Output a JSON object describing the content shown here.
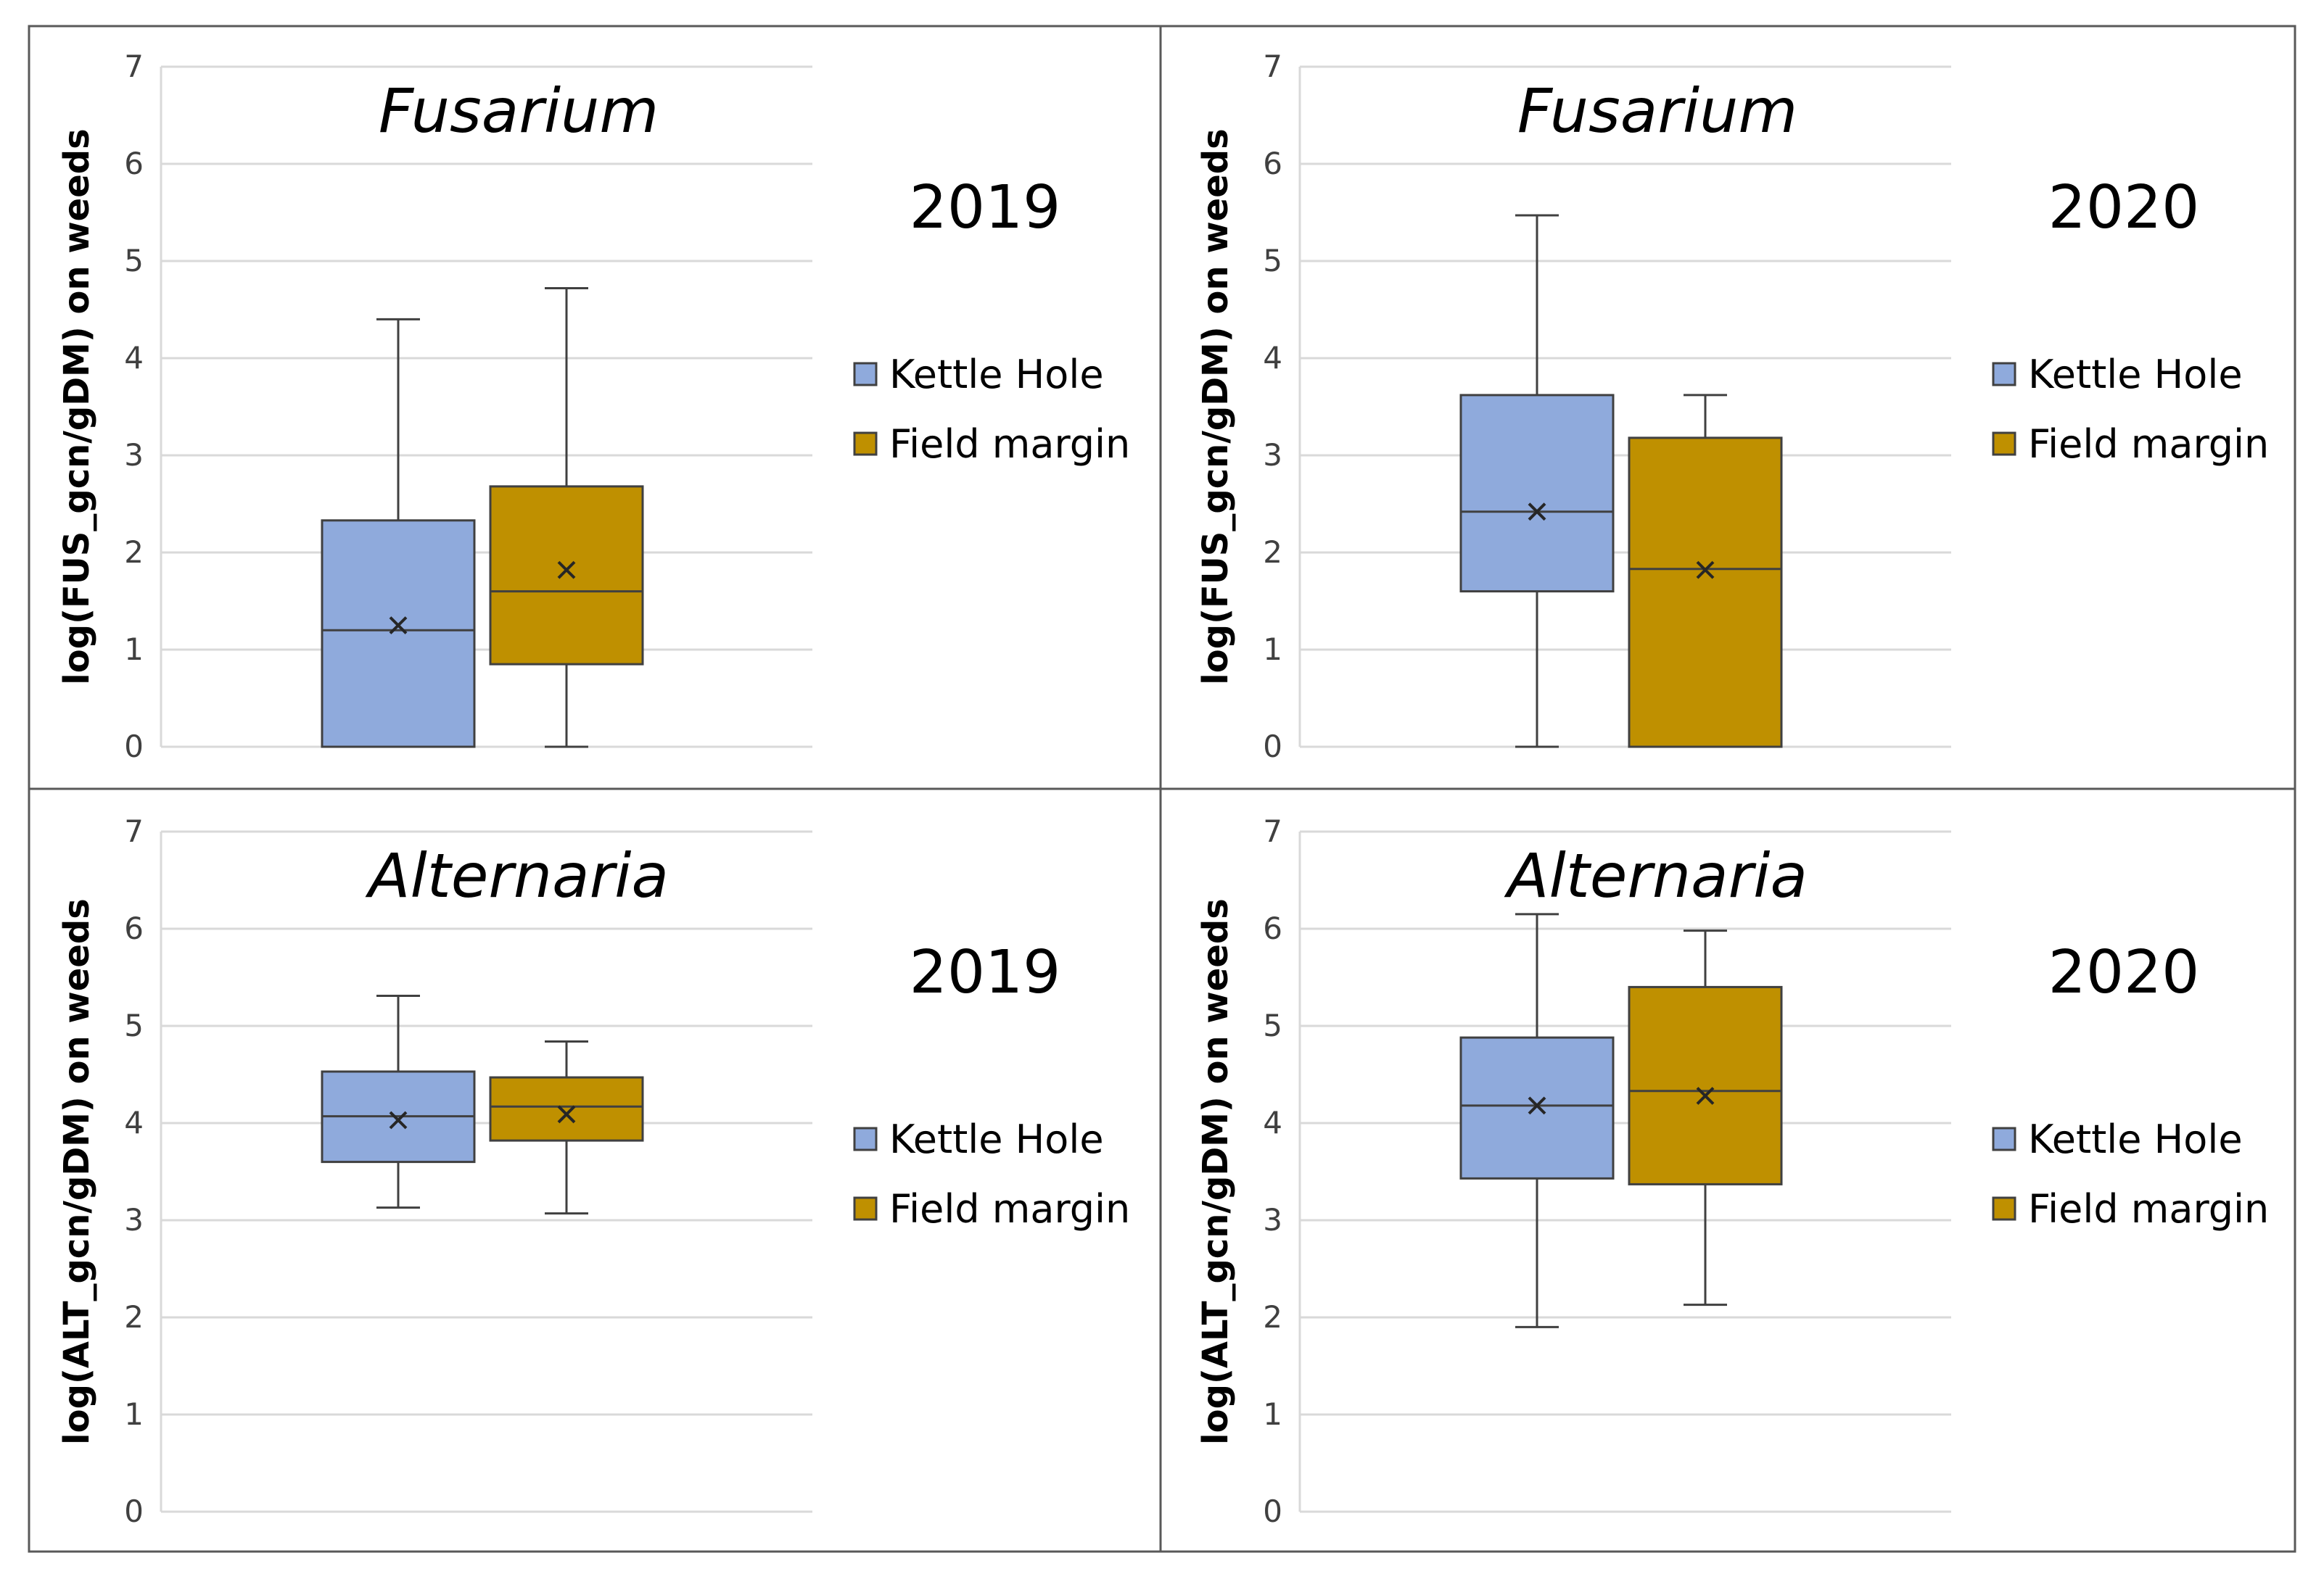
{
  "colors": {
    "kettle_hole": "#8faadc",
    "field_margin": "#bf9000",
    "grid": "#d9d9d9",
    "stroke": "#404040",
    "frame": "#595959"
  },
  "chart_data": [
    {
      "type": "box",
      "title": "Fusarium",
      "year": "2019",
      "ylabel": "log(FUS_gcn/gDM) on weeds",
      "ylim": [
        0,
        7
      ],
      "yticks": [
        "0",
        "1",
        "2",
        "3",
        "4",
        "5",
        "6",
        "7"
      ],
      "legend": [
        "Kettle Hole",
        "Field margin"
      ],
      "series": [
        {
          "name": "Kettle Hole",
          "min": 0,
          "q1": 0,
          "median": 1.2,
          "q3": 2.33,
          "max": 4.4,
          "mean": 1.25
        },
        {
          "name": "Field margin",
          "min": 0,
          "q1": 0.85,
          "median": 1.6,
          "q3": 2.68,
          "max": 4.72,
          "mean": 1.82
        }
      ]
    },
    {
      "type": "box",
      "title": "Fusarium",
      "year": "2020",
      "ylabel": "log(FUS_gcn/gDM) on weeds",
      "ylim": [
        0,
        7
      ],
      "yticks": [
        "0",
        "1",
        "2",
        "3",
        "4",
        "5",
        "6",
        "7"
      ],
      "legend": [
        "Kettle Hole",
        "Field margin"
      ],
      "series": [
        {
          "name": "Kettle Hole",
          "min": 0,
          "q1": 1.6,
          "median": 2.42,
          "q3": 3.62,
          "max": 5.47,
          "mean": 2.42
        },
        {
          "name": "Field margin",
          "min": 0,
          "q1": 0,
          "median": 1.83,
          "q3": 3.18,
          "max": 3.62,
          "mean": 1.82
        }
      ]
    },
    {
      "type": "box",
      "title": "Alternaria",
      "year": "2019",
      "ylabel": "log(ALT_gcn/gDM) on weeds",
      "ylim": [
        0,
        7
      ],
      "yticks": [
        "0",
        "1",
        "2",
        "3",
        "4",
        "5",
        "6",
        "7"
      ],
      "legend": [
        "Kettle Hole",
        "Field margin"
      ],
      "series": [
        {
          "name": "Kettle Hole",
          "min": 3.13,
          "q1": 3.6,
          "median": 4.07,
          "q3": 4.53,
          "max": 5.31,
          "mean": 4.03
        },
        {
          "name": "Field margin",
          "min": 3.07,
          "q1": 3.82,
          "median": 4.17,
          "q3": 4.47,
          "max": 4.84,
          "mean": 4.09
        }
      ]
    },
    {
      "type": "box",
      "title": "Alternaria",
      "year": "2020",
      "ylabel": "log(ALT_gcn/gDM) on weeds",
      "ylim": [
        0,
        7
      ],
      "yticks": [
        "0",
        "1",
        "2",
        "3",
        "4",
        "5",
        "6",
        "7"
      ],
      "legend": [
        "Kettle Hole",
        "Field margin"
      ],
      "series": [
        {
          "name": "Kettle Hole",
          "min": 1.9,
          "q1": 3.43,
          "median": 4.18,
          "q3": 4.88,
          "max": 6.15,
          "mean": 4.18
        },
        {
          "name": "Field margin",
          "min": 2.13,
          "q1": 3.37,
          "median": 4.33,
          "q3": 5.4,
          "max": 5.98,
          "mean": 4.28
        }
      ]
    }
  ]
}
